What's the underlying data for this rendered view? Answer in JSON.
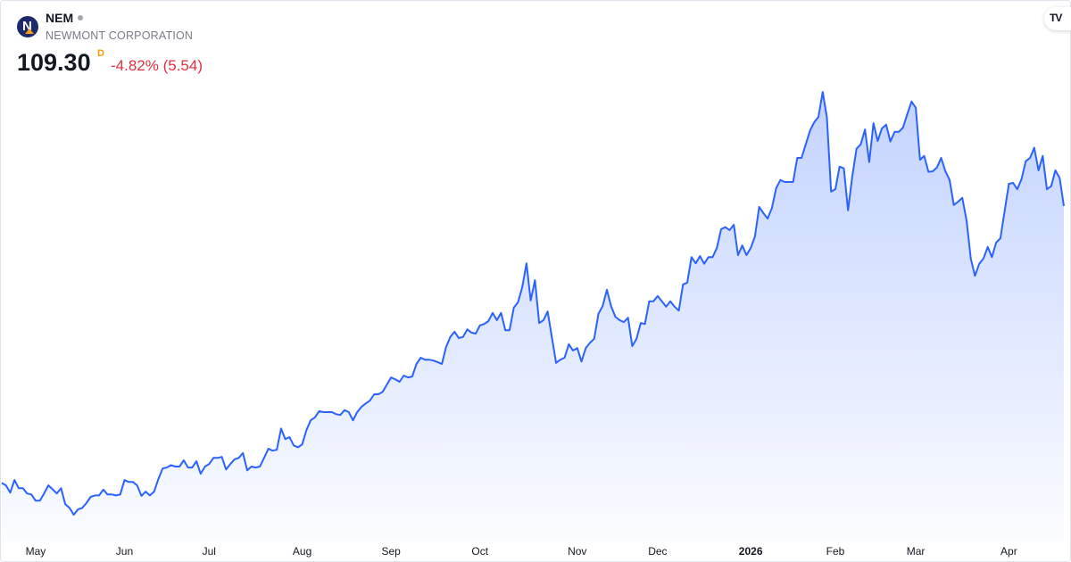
{
  "header": {
    "ticker": "NEM",
    "company": "NEWMONT CORPORATION",
    "price": "109.30",
    "interval_badge": "D",
    "change": "-4.82% (5.54)",
    "logo_text": "N",
    "watermark": "TV"
  },
  "colors": {
    "line": "#2962ff",
    "negative": "#e0303f",
    "badge": "#ff9800"
  },
  "icons": {
    "logo": "newmont-logo-icon",
    "status": "market-status-dot-icon",
    "brand": "tradingview-logo-icon"
  },
  "chart_data": {
    "type": "area",
    "title": "",
    "xlabel": "",
    "ylabel": "",
    "grid": false,
    "y_axis_visible": false,
    "x_ticks": [
      {
        "label": "May",
        "index": 8
      },
      {
        "label": "Jun",
        "index": 29
      },
      {
        "label": "Jul",
        "index": 49
      },
      {
        "label": "Aug",
        "index": 71
      },
      {
        "label": "Sep",
        "index": 92
      },
      {
        "label": "Oct",
        "index": 113
      },
      {
        "label": "Nov",
        "index": 136
      },
      {
        "label": "Dec",
        "index": 155
      },
      {
        "label": "2026",
        "index": 177,
        "bold": true
      },
      {
        "label": "Feb",
        "index": 197
      },
      {
        "label": "Mar",
        "index": 216
      },
      {
        "label": "Apr",
        "index": 238
      }
    ],
    "series": [
      {
        "values": [
          51.8,
          51.3,
          49.8,
          52.4,
          50.7,
          50.7,
          49.6,
          49.4,
          48.1,
          48.1,
          49.6,
          51.3,
          50.5,
          49.6,
          50.7,
          47.4,
          46.6,
          45.2,
          46.3,
          46.6,
          47.6,
          48.9,
          49.2,
          49.2,
          50.4,
          49.4,
          49.4,
          49.2,
          49.4,
          52.4,
          52.0,
          52.0,
          51.3,
          49.1,
          50.0,
          49.2,
          50.0,
          52.6,
          54.8,
          55.0,
          55.5,
          55.2,
          55.2,
          56.5,
          55.0,
          55.0,
          56.3,
          53.7,
          55.2,
          55.7,
          57.0,
          57.0,
          57.2,
          54.6,
          55.7,
          56.7,
          57.0,
          58.0,
          54.4,
          55.2,
          55.0,
          55.2,
          57.0,
          58.9,
          58.5,
          58.7,
          63.1,
          60.9,
          61.3,
          59.6,
          59.2,
          59.8,
          62.8,
          64.8,
          65.4,
          66.7,
          66.5,
          66.5,
          66.5,
          66.1,
          65.9,
          66.9,
          66.5,
          64.8,
          66.5,
          67.6,
          68.3,
          68.9,
          70.2,
          70.2,
          70.7,
          72.2,
          73.7,
          73.3,
          72.8,
          74.1,
          73.7,
          73.9,
          76.5,
          77.8,
          77.4,
          77.4,
          77.2,
          76.9,
          76.5,
          80.0,
          82.1,
          83.2,
          81.9,
          82.1,
          83.7,
          83.0,
          82.8,
          84.5,
          84.8,
          85.4,
          87.1,
          85.6,
          87.1,
          83.5,
          83.5,
          88.2,
          89.3,
          92.4,
          97.4,
          89.7,
          93.9,
          85.0,
          85.6,
          87.4,
          82.1,
          76.7,
          77.4,
          77.8,
          80.6,
          79.3,
          79.8,
          77.0,
          79.8,
          80.9,
          81.7,
          86.9,
          88.5,
          91.9,
          88.5,
          86.3,
          85.6,
          85.2,
          86.1,
          80.2,
          81.7,
          85.0,
          84.8,
          89.5,
          89.5,
          90.6,
          89.5,
          88.4,
          89.5,
          88.4,
          87.6,
          93.0,
          93.4,
          98.7,
          97.4,
          98.9,
          97.3,
          98.7,
          98.7,
          100.6,
          104.5,
          104.9,
          104.3,
          105.4,
          99.1,
          101.1,
          99.1,
          100.6,
          103.0,
          109.1,
          107.8,
          106.7,
          108.9,
          113.0,
          114.7,
          114.3,
          114.3,
          114.3,
          119.3,
          119.3,
          122.1,
          124.9,
          126.7,
          127.8,
          133.0,
          127.7,
          112.3,
          112.8,
          117.5,
          117.1,
          108.4,
          115.4,
          121.2,
          122.1,
          125.2,
          118.4,
          126.5,
          122.8,
          125.4,
          126.2,
          122.7,
          124.7,
          124.7,
          125.6,
          128.4,
          131.0,
          129.7,
          118.9,
          119.7,
          116.4,
          116.5,
          117.3,
          119.3,
          116.5,
          114.7,
          109.5,
          110.2,
          111.0,
          106.3,
          98.4,
          94.8,
          97.3,
          98.4,
          100.8,
          98.7,
          101.7,
          102.6,
          108.2,
          113.9,
          114.1,
          112.8,
          114.9,
          118.6,
          119.3,
          121.4,
          116.7,
          119.7,
          112.8,
          113.4,
          116.7,
          115.1,
          109.3
        ]
      }
    ]
  }
}
